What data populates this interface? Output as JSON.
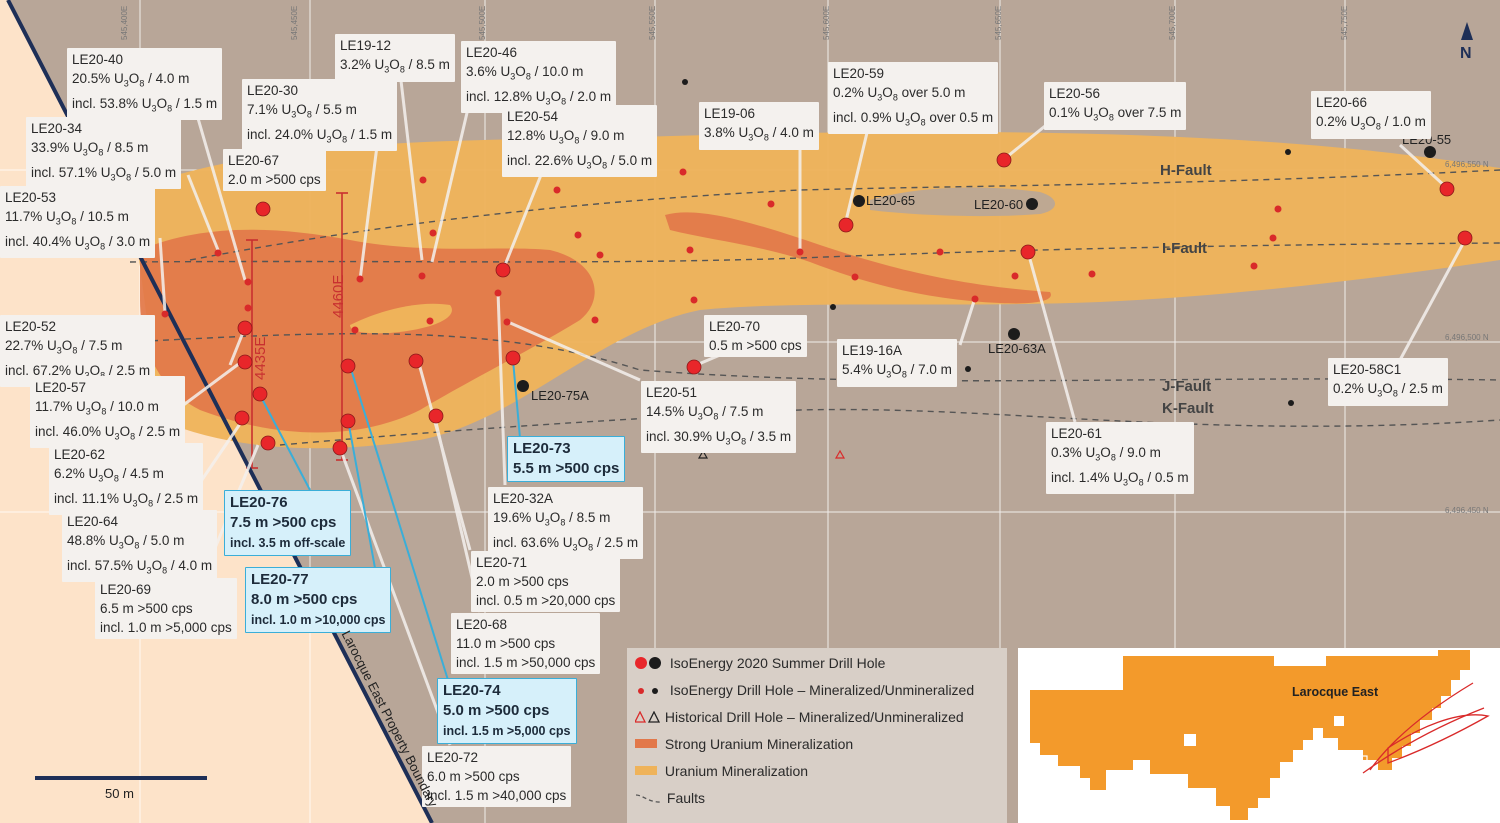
{
  "legend": {
    "items": [
      {
        "label": "IsoEnergy 2020 Summer Drill Hole"
      },
      {
        "label": "IsoEnergy Drill Hole – Mineralized/Unmineralized"
      },
      {
        "label": "Historical Drill Hole – Mineralized/Unmineralized"
      },
      {
        "label": "Strong Uranium Mineralization"
      },
      {
        "label": "Uranium  Mineralization"
      },
      {
        "label": "Faults"
      }
    ]
  },
  "faults": {
    "h": "H-Fault",
    "i": "I-Fault",
    "j": "J-Fault",
    "k": "K-Fault"
  },
  "north": "N",
  "scale": "50 m",
  "boundary": "Larocque East Property Boundary",
  "inset_label": "Larocque East",
  "sections": {
    "a": "4435E",
    "b": "4460E"
  },
  "coords": {
    "e1": "545,400E",
    "e2": "545,450E",
    "e3": "545,500E",
    "e4": "545,550E",
    "e5": "545,600E",
    "e6": "545,650E",
    "e7": "545,700E",
    "e8": "545,750E",
    "n1": "6,496,550 N",
    "n2": "6,496,500 N",
    "n3": "6,496,450 N"
  },
  "holes": {
    "h65": "LE20-65",
    "h60": "LE20-60",
    "h55": "LE20-55",
    "h63a": "LE20-63A",
    "h75a": "LE20-75A"
  },
  "labels": {
    "le20_40": {
      "id": "LE20-40",
      "l1": "20.5% U3O8 / 4.0 m",
      "l2": "incl. 53.8% U3O8 / 1.5 m"
    },
    "le19_12": {
      "id": "LE19-12",
      "l1": "3.2% U3O8 / 8.5 m"
    },
    "le20_46": {
      "id": "LE20-46",
      "l1": "3.6% U3O8 / 10.0 m",
      "l2": "incl. 12.8% U3O8 / 2.0 m"
    },
    "le20_30": {
      "id": "LE20-30",
      "l1": "7.1% U3O8 / 5.5 m",
      "l2": "incl. 24.0% U3O8 / 1.5 m"
    },
    "le20_54": {
      "id": "LE20-54",
      "l1": "12.8% U3O8 / 9.0 m",
      "l2": "incl. 22.6% U3O8 / 5.0 m"
    },
    "le19_06": {
      "id": "LE19-06",
      "l1": "3.8% U3O8 / 4.0 m"
    },
    "le20_59": {
      "id": "LE20-59",
      "l1": "0.2% U3O8 over 5.0 m",
      "l2": "incl. 0.9% U3O8 over 0.5 m"
    },
    "le20_56": {
      "id": "LE20-56",
      "l1": "0.1% U3O8 over 7.5 m"
    },
    "le20_66": {
      "id": "LE20-66",
      "l1": "0.2% U3O8 / 1.0 m"
    },
    "le20_34": {
      "id": "LE20-34",
      "l1": "33.9% U3O8 / 8.5 m",
      "l2": "incl. 57.1% U3O8 / 5.0 m"
    },
    "le20_67": {
      "id": "LE20-67",
      "l1": "2.0 m >500 cps"
    },
    "le20_53": {
      "id": "LE20-53",
      "l1": "11.7% U3O8 / 10.5 m",
      "l2": "incl. 40.4% U3O8 / 3.0 m"
    },
    "le20_52": {
      "id": "LE20-52",
      "l1": "22.7% U3O8 / 7.5 m",
      "l2": "incl. 67.2% U3O8 / 2.5 m"
    },
    "le20_57": {
      "id": "LE20-57",
      "l1": "11.7% U3O8 / 10.0 m",
      "l2": "incl. 46.0% U3O8 / 2.5 m"
    },
    "le20_62": {
      "id": "LE20-62",
      "l1": "6.2% U3O8 / 4.5 m",
      "l2": "incl. 11.1% U3O8 / 2.5 m"
    },
    "le20_64": {
      "id": "LE20-64",
      "l1": "48.8% U3O8 / 5.0 m",
      "l2": "incl. 57.5% U3O8 / 4.0 m"
    },
    "le20_69": {
      "id": "LE20-69",
      "l1": "6.5 m >500 cps",
      "l2": "incl. 1.0 m >5,000 cps"
    },
    "le20_70": {
      "id": "LE20-70",
      "l1": "0.5 m >500 cps"
    },
    "le19_16a": {
      "id": "LE19-16A",
      "l1": "5.4% U3O8 / 7.0 m"
    },
    "le20_58c1": {
      "id": "LE20-58C1",
      "l1": "0.2% U3O8 / 2.5 m"
    },
    "le20_51": {
      "id": "LE20-51",
      "l1": "14.5% U3O8 / 7.5 m",
      "l2": "incl. 30.9% U3O8 / 3.5 m"
    },
    "le20_61": {
      "id": "LE20-61",
      "l1": "0.3% U3O8 / 9.0 m",
      "l2": "incl. 1.4% U3O8 / 0.5 m"
    },
    "le20_73": {
      "id": "LE20-73",
      "l1": "5.5 m >500 cps"
    },
    "le20_32a": {
      "id": "LE20-32A",
      "l1": "19.6% U3O8 / 8.5 m",
      "l2": "incl. 63.6% U3O8 / 2.5 m"
    },
    "le20_76": {
      "id": "LE20-76",
      "l1": "7.5 m >500 cps",
      "l2": "incl. 3.5 m off-scale"
    },
    "le20_71": {
      "id": "LE20-71",
      "l1": "2.0 m >500 cps",
      "l2": "incl. 0.5 m >20,000 cps"
    },
    "le20_77": {
      "id": "LE20-77",
      "l1": "8.0 m >500 cps",
      "l2": "incl. 1.0 m >10,000 cps"
    },
    "le20_68": {
      "id": "LE20-68",
      "l1": "11.0 m >500 cps",
      "l2": "incl. 1.5 m >50,000 cps"
    },
    "le20_74": {
      "id": "LE20-74",
      "l1": "5.0 m >500 cps",
      "l2": "incl. 1.5 m >5,000 cps"
    },
    "le20_72": {
      "id": "LE20-72",
      "l1": "6.0 m >500 cps",
      "l2": "incl. 1.5 m >40,000 cps"
    }
  }
}
